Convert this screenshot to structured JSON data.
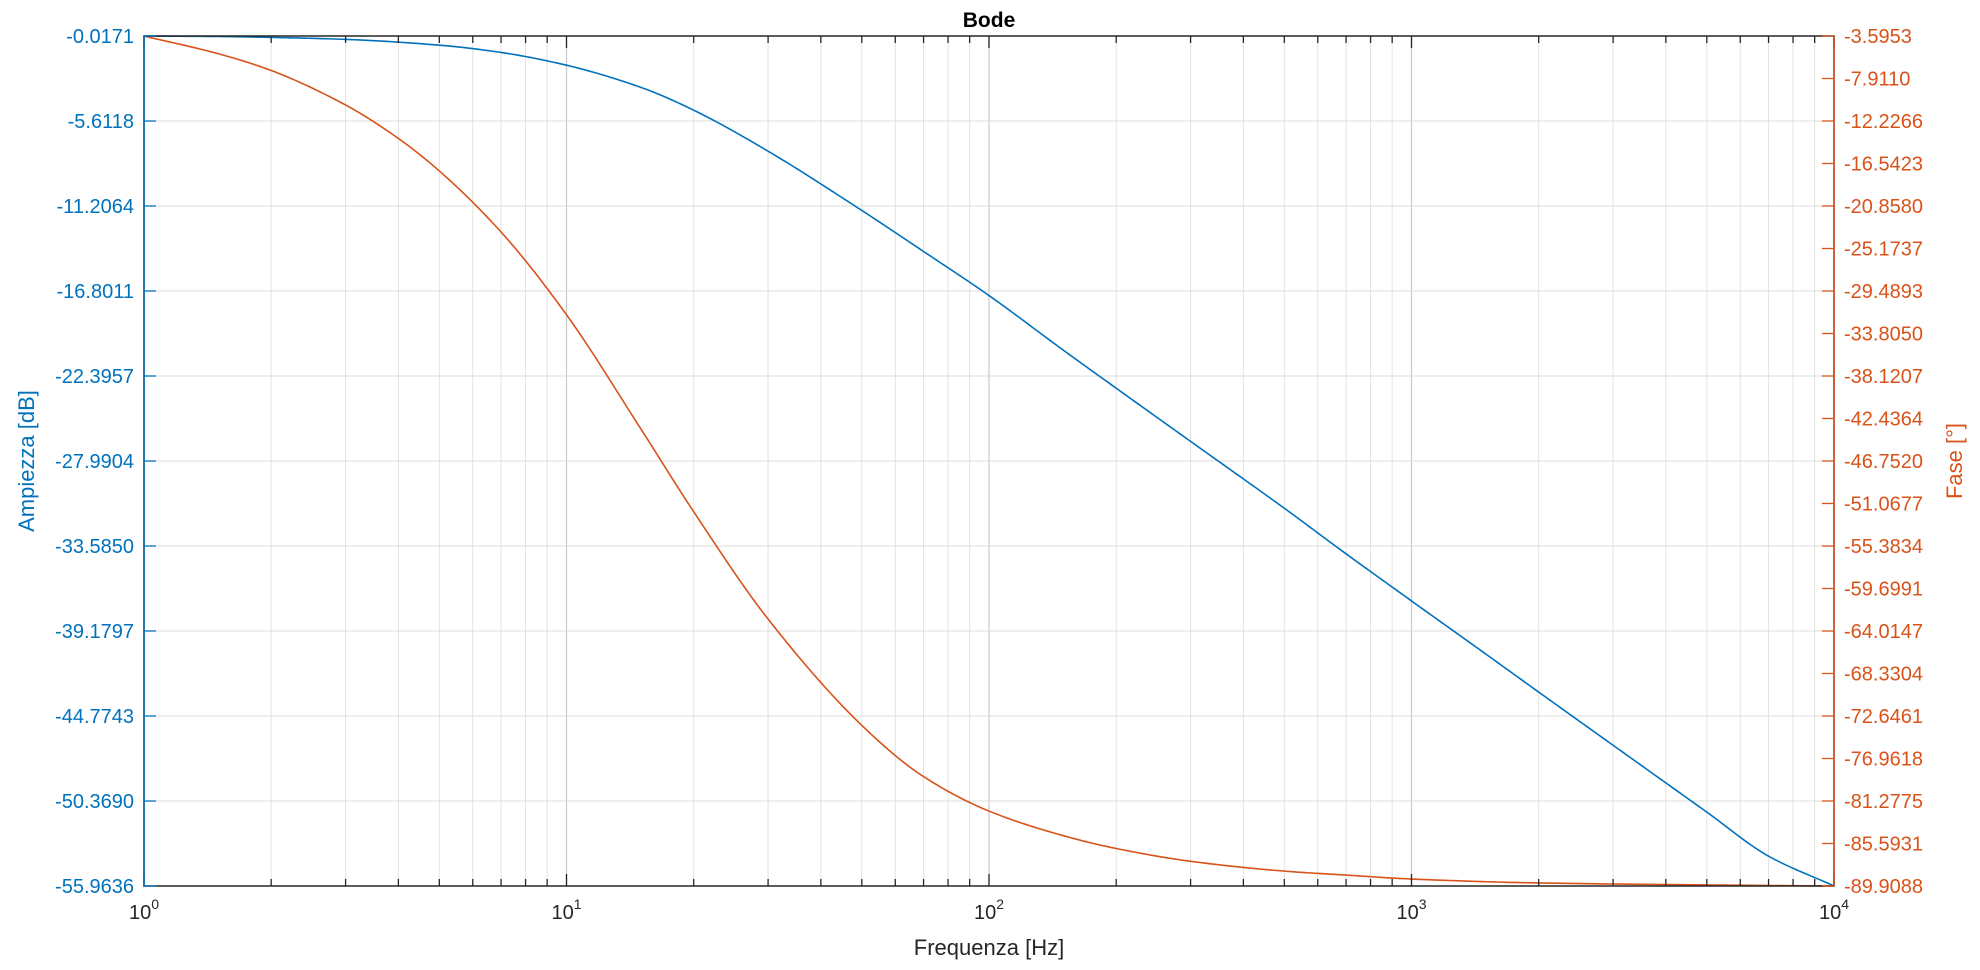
{
  "chart_data": {
    "type": "line",
    "title": "Bode",
    "xlabel": "Frequenza [Hz]",
    "ylabel_left": "Ampiezza [dB]",
    "ylabel_right": "Fase [°]",
    "x_scale": "log",
    "xlim": [
      1,
      10000
    ],
    "x_ticks": [
      {
        "value": 1,
        "base": "10",
        "exp": "0"
      },
      {
        "value": 10,
        "base": "10",
        "exp": "1"
      },
      {
        "value": 100,
        "base": "10",
        "exp": "2"
      },
      {
        "value": 1000,
        "base": "10",
        "exp": "3"
      },
      {
        "value": 10000,
        "base": "10",
        "exp": "4"
      }
    ],
    "ylim_left": [
      -55.9636,
      -0.0171
    ],
    "yticks_left": [
      "-0.0171",
      "-5.6118",
      "-11.2064",
      "-16.8011",
      "-22.3957",
      "-27.9904",
      "-33.5850",
      "-39.1797",
      "-44.7743",
      "-50.3690",
      "-55.9636"
    ],
    "ylim_right": [
      -89.9088,
      -3.5953
    ],
    "yticks_right": [
      "-3.5953",
      "-7.9110",
      "-12.2266",
      "-16.5423",
      "-20.8580",
      "-25.1737",
      "-29.4893",
      "-33.8050",
      "-38.1207",
      "-42.4364",
      "-46.7520",
      "-51.0677",
      "-55.3834",
      "-59.6991",
      "-64.0147",
      "-68.3304",
      "-72.6461",
      "-76.9618",
      "-81.2775",
      "-85.5931",
      "-89.9088"
    ],
    "grid": true,
    "series": [
      {
        "axis": "left",
        "color": "#0072BD",
        "x": [
          1,
          1.5,
          2,
          3,
          5,
          7,
          10,
          15,
          20,
          30,
          50,
          70,
          100,
          150,
          200,
          300,
          500,
          700,
          1000,
          1500,
          2000,
          3000,
          5000,
          7000,
          10000
        ],
        "y": [
          -0.02,
          -0.05,
          -0.11,
          -0.24,
          -0.62,
          -1.1,
          -1.94,
          -3.4,
          -4.9,
          -7.6,
          -11.5,
          -14.2,
          -17.1,
          -20.7,
          -23.2,
          -26.7,
          -31.1,
          -34.1,
          -37.2,
          -40.7,
          -43.2,
          -46.7,
          -51.1,
          -54.0,
          -55.96
        ]
      },
      {
        "axis": "right",
        "color": "#D95319",
        "x": [
          1,
          1.5,
          2,
          3,
          4,
          5,
          7,
          10,
          15,
          20,
          30,
          50,
          70,
          100,
          150,
          200,
          300,
          500,
          700,
          1000,
          2000,
          5000,
          10000
        ],
        "y": [
          -3.6,
          -5.4,
          -7.1,
          -10.6,
          -14.0,
          -17.3,
          -23.5,
          -31.9,
          -43.5,
          -51.9,
          -62.8,
          -73.6,
          -78.8,
          -82.3,
          -84.8,
          -86.1,
          -87.4,
          -88.4,
          -88.8,
          -89.2,
          -89.6,
          -89.8,
          -89.91
        ]
      }
    ]
  }
}
